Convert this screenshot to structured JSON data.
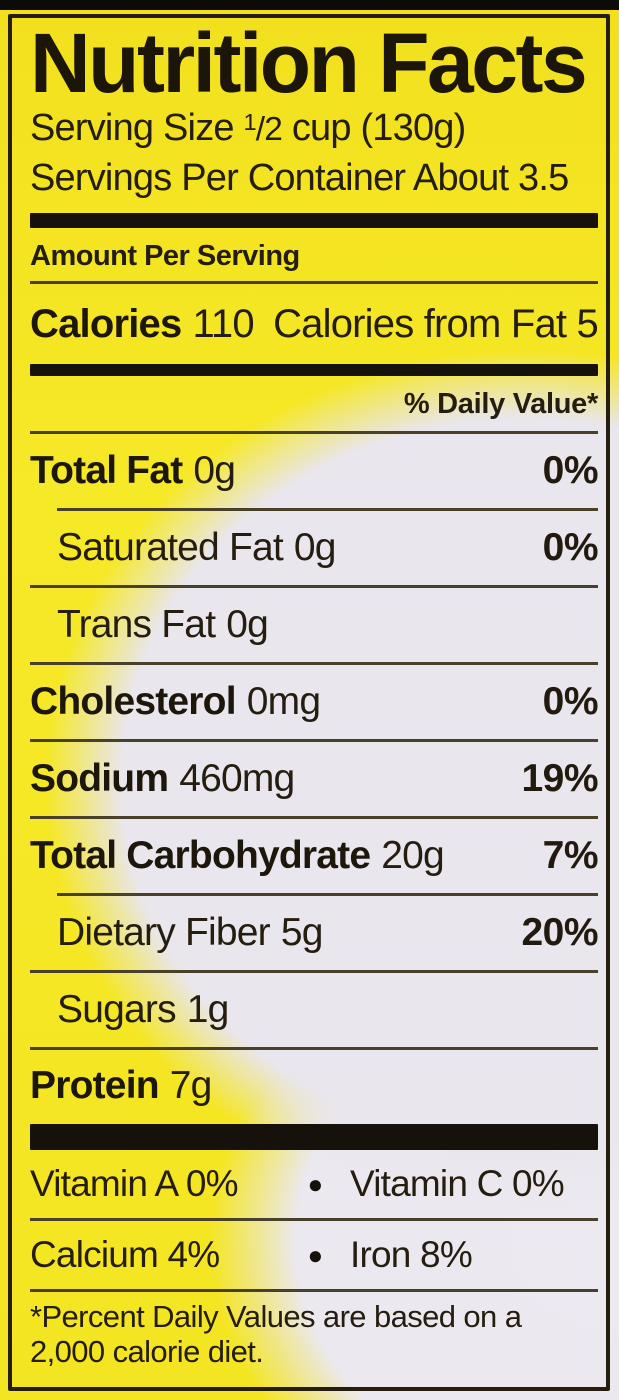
{
  "colors": {
    "label_yellow": "#f5e824",
    "highlight_white": "#e9e6ed",
    "ink": "#241d10",
    "rule": "#49402a",
    "bar_black": "#16110a"
  },
  "label": {
    "title": "Nutrition Facts",
    "serving_size": {
      "pre": "Serving Size ",
      "sup": "1",
      "den": "/2",
      "post": " cup (130g)"
    },
    "servings_per_container": "Servings Per Container About 3.5",
    "amount_per_serving": "Amount Per Serving",
    "calories": {
      "label": "Calories",
      "value": "110",
      "from_fat": "Calories from Fat 5"
    },
    "daily_value_header": "% Daily Value*",
    "nutrients": [
      {
        "name": "Total Fat",
        "amount": "0g",
        "dv": "0%"
      },
      {
        "name": "Saturated Fat",
        "amount": "0g",
        "dv": "0%"
      },
      {
        "name": "Trans Fat",
        "amount": "0g",
        "dv": ""
      },
      {
        "name": "Cholesterol",
        "amount": "0mg",
        "dv": "0%"
      },
      {
        "name": "Sodium",
        "amount": "460mg",
        "dv": "19%"
      },
      {
        "name": "Total Carbohydrate",
        "amount": "20g",
        "dv": "7%"
      },
      {
        "name": "Dietary Fiber",
        "amount": "5g",
        "dv": "20%"
      },
      {
        "name": "Sugars",
        "amount": "1g",
        "dv": ""
      },
      {
        "name": "Protein",
        "amount": "7g",
        "dv": ""
      }
    ],
    "vitamins": [
      {
        "left": "Vitamin A 0%",
        "bullet": "●",
        "right": "Vitamin C 0%"
      },
      {
        "left": "Calcium 4%",
        "bullet": "●",
        "right": "Iron 8%"
      }
    ],
    "footnote_line1": "*Percent Daily Values are based on a",
    "footnote_line2": "2,000 calorie diet."
  }
}
